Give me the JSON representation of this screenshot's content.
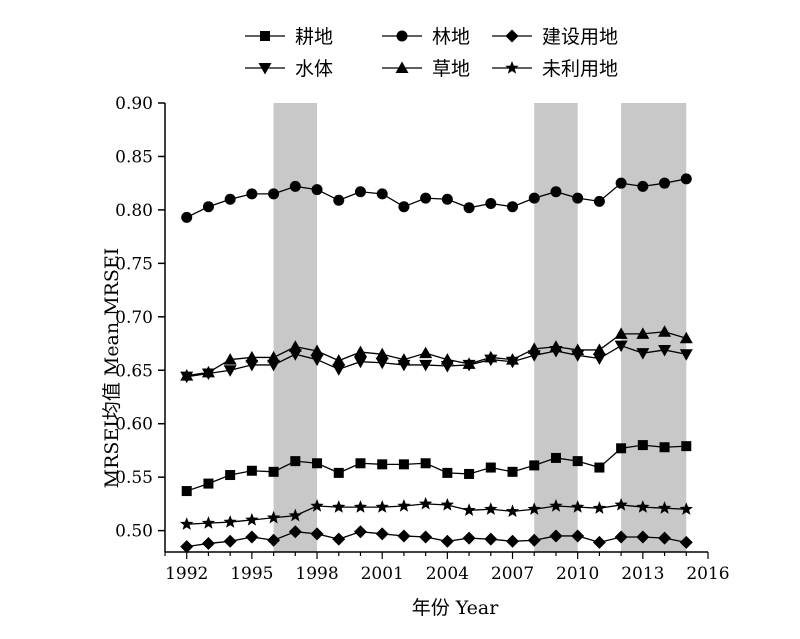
{
  "chart_data": {
    "type": "line",
    "xlabel": "年份 Year",
    "ylabel": "MRSEI均值 Mean MRSEI",
    "xlim": [
      1991,
      2016
    ],
    "ylim": [
      0.48,
      0.9
    ],
    "x_ticks": [
      1992,
      1995,
      1998,
      2001,
      2004,
      2007,
      2010,
      2013,
      2016
    ],
    "y_ticks": [
      "0.50",
      "0.55",
      "0.60",
      "0.65",
      "0.70",
      "0.75",
      "0.80",
      "0.85",
      "0.90"
    ],
    "legend_position": "top",
    "shaded_periods": [
      [
        1996,
        1998
      ],
      [
        2008,
        2010
      ],
      [
        2012,
        2015
      ]
    ],
    "x": [
      1992,
      1993,
      1994,
      1995,
      1996,
      1997,
      1998,
      1999,
      2000,
      2001,
      2002,
      2003,
      2004,
      2005,
      2006,
      2007,
      2008,
      2009,
      2010,
      2011,
      2012,
      2013,
      2014,
      2015
    ],
    "series": [
      {
        "name": "耕地",
        "marker": "square",
        "values": [
          0.537,
          0.544,
          0.552,
          0.556,
          0.555,
          0.565,
          0.563,
          0.554,
          0.563,
          0.562,
          0.562,
          0.563,
          0.554,
          0.553,
          0.559,
          0.555,
          0.561,
          0.568,
          0.565,
          0.559,
          0.577,
          0.58,
          0.578,
          0.579
        ]
      },
      {
        "name": "林地",
        "marker": "circle",
        "values": [
          0.793,
          0.803,
          0.81,
          0.815,
          0.815,
          0.822,
          0.819,
          0.809,
          0.817,
          0.815,
          0.803,
          0.811,
          0.81,
          0.802,
          0.806,
          0.803,
          0.811,
          0.817,
          0.811,
          0.808,
          0.825,
          0.822,
          0.825,
          0.829
        ]
      },
      {
        "name": "建设用地",
        "marker": "diamond",
        "values": [
          0.485,
          0.488,
          0.49,
          0.494,
          0.491,
          0.499,
          0.497,
          0.492,
          0.499,
          0.497,
          0.495,
          0.494,
          0.49,
          0.493,
          0.492,
          0.49,
          0.491,
          0.495,
          0.495,
          0.489,
          0.494,
          0.494,
          0.493,
          0.489
        ]
      },
      {
        "name": "水体",
        "marker": "triangle-down",
        "values": [
          0.644,
          0.647,
          0.65,
          0.655,
          0.655,
          0.665,
          0.66,
          0.651,
          0.658,
          0.657,
          0.655,
          0.655,
          0.654,
          0.655,
          0.66,
          0.658,
          0.664,
          0.668,
          0.664,
          0.661,
          0.673,
          0.666,
          0.669,
          0.665
        ]
      },
      {
        "name": "草地",
        "marker": "triangle-up",
        "values": [
          0.645,
          0.648,
          0.66,
          0.662,
          0.662,
          0.672,
          0.668,
          0.659,
          0.667,
          0.665,
          0.66,
          0.666,
          0.66,
          0.656,
          0.662,
          0.66,
          0.67,
          0.672,
          0.669,
          0.669,
          0.684,
          0.684,
          0.686,
          0.68
        ]
      },
      {
        "name": "未利用地",
        "marker": "star",
        "values": [
          0.506,
          0.507,
          0.508,
          0.51,
          0.512,
          0.514,
          0.523,
          0.522,
          0.522,
          0.522,
          0.523,
          0.525,
          0.524,
          0.519,
          0.52,
          0.518,
          0.52,
          0.523,
          0.522,
          0.521,
          0.524,
          0.522,
          0.521,
          0.52
        ]
      }
    ]
  }
}
